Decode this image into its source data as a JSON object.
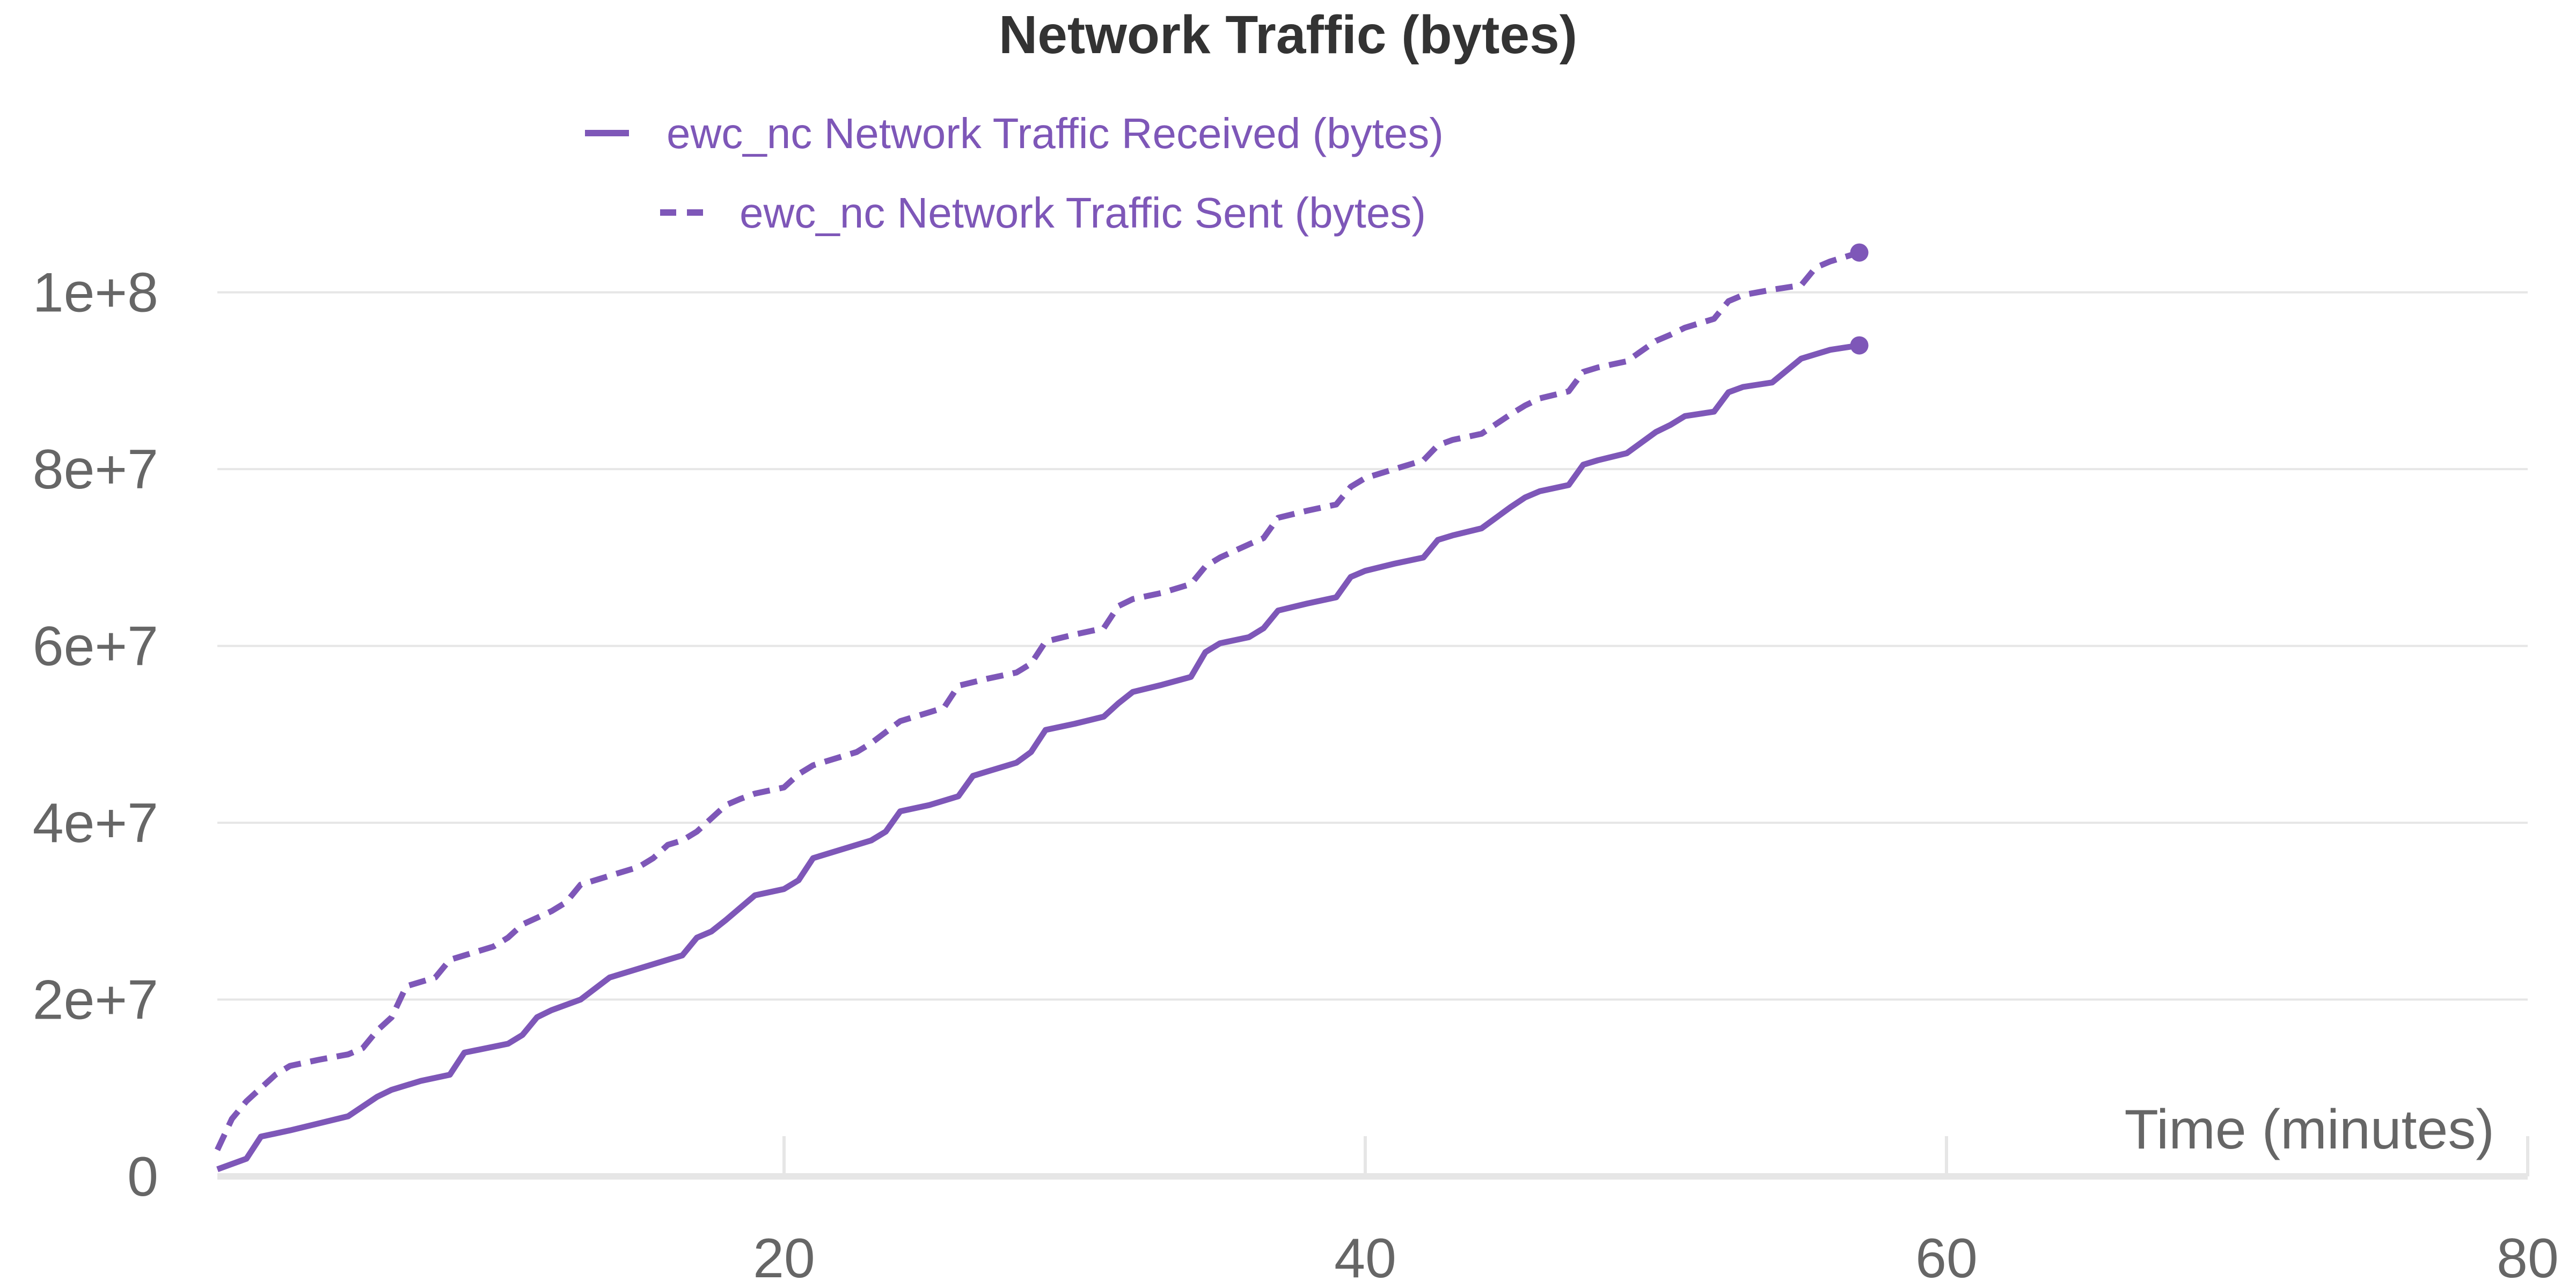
{
  "chart_data": {
    "type": "line",
    "title": "Network Traffic (bytes)",
    "xlabel": "Time (minutes)",
    "ylabel": "",
    "xlim": [
      0.5,
      80
    ],
    "ylim": [
      0,
      110000000
    ],
    "x_ticks": [
      20,
      40,
      60,
      80
    ],
    "x_tick_labels": [
      "20",
      "40",
      "60",
      "80"
    ],
    "y_ticks": [
      0,
      20000000,
      40000000,
      60000000,
      80000000,
      100000000
    ],
    "y_tick_labels": [
      "0",
      "2e+7",
      "4e+7",
      "6e+7",
      "8e+7",
      "1e+8"
    ],
    "grid": true,
    "legend_position": "top-center",
    "colors": {
      "series": "#7e57b8",
      "grid": "#e6e6e6",
      "axis": "#e6e6e6",
      "text": "#666666"
    },
    "series": [
      {
        "name": "ewc_nc Network Traffic Received (bytes)",
        "style": "solid",
        "x": [
          0.5,
          1.5,
          2.0,
          3.0,
          4.0,
          5.0,
          6.0,
          6.5,
          7.5,
          8.5,
          9.0,
          10.5,
          11.0,
          11.5,
          12.0,
          13.0,
          14.0,
          15.0,
          16.0,
          16.5,
          17.0,
          17.5,
          18.0,
          19.0,
          20.0,
          20.5,
          21.0,
          22.0,
          23.0,
          23.5,
          24.0,
          25.0,
          26.0,
          26.5,
          27.0,
          28.0,
          28.5,
          29.0,
          30.0,
          31.0,
          31.5,
          32.0,
          33.0,
          34.0,
          34.5,
          35.0,
          36.0,
          36.5,
          37.0,
          38.0,
          39.0,
          39.5,
          40.0,
          41.0,
          42.0,
          42.5,
          43.0,
          44.0,
          45.0,
          45.5,
          46.0,
          47.0,
          47.5,
          48.0,
          49.0,
          50.0,
          50.5,
          51.0,
          52.0,
          52.5,
          53.0,
          54.0,
          55.0,
          55.5,
          56.0,
          57.0
        ],
        "values": [
          800000,
          2000000,
          4500000,
          5200000,
          6000000,
          6800000,
          9000000,
          9800000,
          10800000,
          11500000,
          14000000,
          15000000,
          16000000,
          18000000,
          18800000,
          20000000,
          22500000,
          23500000,
          24500000,
          25000000,
          27000000,
          27700000,
          29000000,
          31800000,
          32500000,
          33500000,
          36000000,
          37000000,
          38000000,
          39000000,
          41300000,
          42000000,
          43000000,
          45300000,
          45800000,
          46800000,
          48000000,
          50500000,
          51200000,
          52000000,
          53500000,
          54800000,
          55600000,
          56500000,
          59300000,
          60300000,
          61000000,
          62000000,
          64000000,
          64800000,
          65500000,
          67800000,
          68500000,
          69300000,
          70000000,
          72000000,
          72500000,
          73300000,
          75700000,
          76800000,
          77500000,
          78200000,
          80500000,
          81000000,
          81800000,
          84200000,
          85000000,
          86000000,
          86500000,
          88700000,
          89300000,
          89800000,
          92500000,
          93000000,
          93500000,
          94000000
        ]
      },
      {
        "name": "ewc_nc Network Traffic Sent (bytes)",
        "style": "dashed",
        "x": [
          0.5,
          1.0,
          1.5,
          2.0,
          2.5,
          3.0,
          4.0,
          5.0,
          5.5,
          6.0,
          6.5,
          7.0,
          8.0,
          8.5,
          9.0,
          10.0,
          10.5,
          11.0,
          12.0,
          12.5,
          13.0,
          14.0,
          15.0,
          15.5,
          16.0,
          16.5,
          17.0,
          18.0,
          18.5,
          19.0,
          20.0,
          20.5,
          21.0,
          22.0,
          22.5,
          23.0,
          24.0,
          25.0,
          25.5,
          26.0,
          27.0,
          28.0,
          28.5,
          29.0,
          30.0,
          31.0,
          31.5,
          32.0,
          33.0,
          34.0,
          34.5,
          35.0,
          36.0,
          36.5,
          37.0,
          38.0,
          39.0,
          39.5,
          40.0,
          41.0,
          42.0,
          42.5,
          43.0,
          44.0,
          45.0,
          45.5,
          46.0,
          47.0,
          47.5,
          48.0,
          49.0,
          50.0,
          50.5,
          51.0,
          52.0,
          52.5,
          53.0,
          54.0,
          55.0,
          55.5,
          56.0,
          57.0
        ],
        "values": [
          3000000,
          6500000,
          8500000,
          10000000,
          11500000,
          12500000,
          13200000,
          13800000,
          14500000,
          16500000,
          18000000,
          21500000,
          22500000,
          24500000,
          25000000,
          26000000,
          27000000,
          28500000,
          30000000,
          31000000,
          33000000,
          34000000,
          35000000,
          36000000,
          37500000,
          38000000,
          39000000,
          42000000,
          42700000,
          43300000,
          44000000,
          45500000,
          46500000,
          47500000,
          48000000,
          49000000,
          51500000,
          52500000,
          53000000,
          55500000,
          56300000,
          57000000,
          58000000,
          60500000,
          61300000,
          62000000,
          64500000,
          65300000,
          66000000,
          67000000,
          69000000,
          70000000,
          71500000,
          72200000,
          74500000,
          75300000,
          76000000,
          78000000,
          79000000,
          80000000,
          81000000,
          82700000,
          83300000,
          84000000,
          86200000,
          87200000,
          88000000,
          88800000,
          91000000,
          91500000,
          92200000,
          94500000,
          95200000,
          96000000,
          97000000,
          99000000,
          99700000,
          100300000,
          100800000,
          102800000,
          103500000,
          104500000
        ]
      }
    ]
  }
}
